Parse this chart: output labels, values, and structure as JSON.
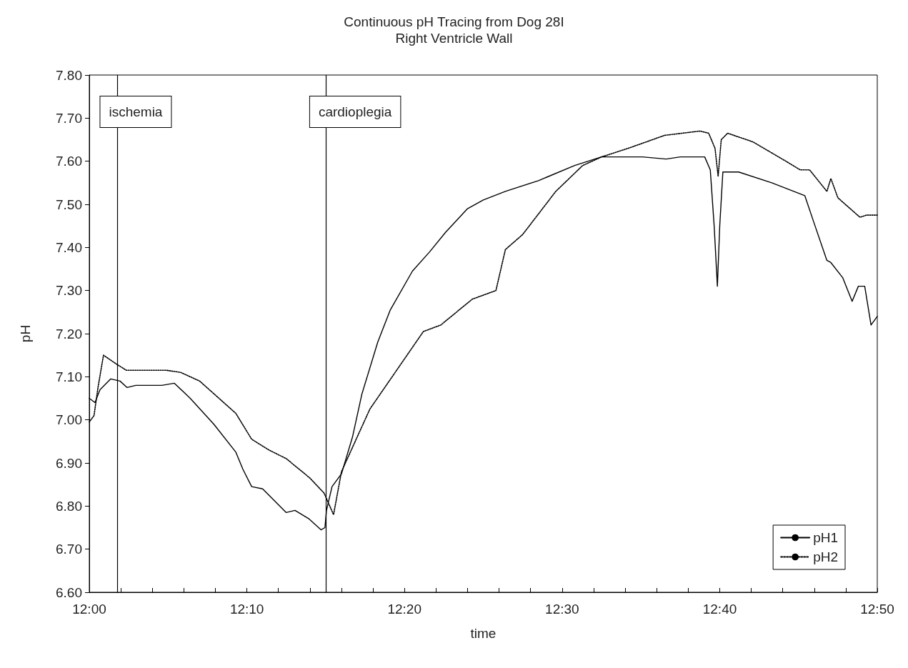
{
  "chart_data": {
    "type": "line",
    "title": "Continuous pH Tracing from Dog 28I",
    "subtitle": "Right Ventricle Wall",
    "xlabel": "time",
    "ylabel": "pH",
    "xlim": [
      12,
      12.8333
    ],
    "xticks": [
      {
        "value": 12,
        "label": "12:00"
      },
      {
        "value": 12.0333,
        "label": null
      },
      {
        "value": 12.0667,
        "label": null
      },
      {
        "value": 12.1,
        "label": null
      },
      {
        "value": 12.1333,
        "label": null
      },
      {
        "value": 12.1667,
        "label": "12:10"
      },
      {
        "value": 12.2,
        "label": null
      },
      {
        "value": 12.2333,
        "label": null
      },
      {
        "value": 12.2667,
        "label": null
      },
      {
        "value": 12.3,
        "label": null
      },
      {
        "value": 12.3333,
        "label": "12:20"
      },
      {
        "value": 12.3667,
        "label": null
      },
      {
        "value": 12.4,
        "label": null
      },
      {
        "value": 12.4333,
        "label": null
      },
      {
        "value": 12.4667,
        "label": null
      },
      {
        "value": 12.5,
        "label": "12:30"
      },
      {
        "value": 12.5333,
        "label": null
      },
      {
        "value": 12.5667,
        "label": null
      },
      {
        "value": 12.6,
        "label": null
      },
      {
        "value": 12.6333,
        "label": null
      },
      {
        "value": 12.6667,
        "label": "12:40"
      },
      {
        "value": 12.7,
        "label": null
      },
      {
        "value": 12.7333,
        "label": null
      },
      {
        "value": 12.7667,
        "label": null
      },
      {
        "value": 12.8,
        "label": null
      },
      {
        "value": 12.8333,
        "label": "12:50"
      }
    ],
    "ylim": [
      6.6,
      7.8
    ],
    "yticks": [
      {
        "value": 6.6,
        "label": "6.60"
      },
      {
        "value": 6.7,
        "label": "6.70"
      },
      {
        "value": 6.8,
        "label": "6.80"
      },
      {
        "value": 6.9,
        "label": "6.90"
      },
      {
        "value": 7.0,
        "label": "7.00"
      },
      {
        "value": 7.1,
        "label": "7.10"
      },
      {
        "value": 7.2,
        "label": "7.20"
      },
      {
        "value": 7.3,
        "label": "7.30"
      },
      {
        "value": 7.4,
        "label": "7.40"
      },
      {
        "value": 7.5,
        "label": "7.50"
      },
      {
        "value": 7.6,
        "label": "7.60"
      },
      {
        "value": 7.7,
        "label": "7.70"
      },
      {
        "value": 7.8,
        "label": "7.80"
      }
    ],
    "grid": false,
    "legend": "bottom right",
    "marker": "none",
    "ref_lines": [
      {
        "axis": "x",
        "value": 12.0283,
        "label": "ischemia",
        "color": "#000000"
      },
      {
        "axis": "x",
        "value": 12.25,
        "label": "cardioplegia",
        "color": "#000000"
      }
    ],
    "series": [
      {
        "name": "pH1",
        "color": "#000000",
        "line_style": "solid",
        "x": [
          12,
          12.006,
          12.0113,
          12.0227,
          12.0325,
          12.04,
          12.0492,
          12.0767,
          12.09,
          12.1067,
          12.1317,
          12.155,
          12.1625,
          12.1717,
          12.1833,
          12.2083,
          12.2175,
          12.2325,
          12.245,
          12.2492,
          12.2508,
          12.2567,
          12.2667,
          12.2783,
          12.2883,
          12.305,
          12.3183,
          12.3417,
          12.36,
          12.3767,
          12.4,
          12.4167,
          12.44,
          12.475,
          12.5133,
          12.5417,
          12.585,
          12.61,
          12.625,
          12.6508,
          12.6567,
          12.6608,
          12.6642,
          12.6667,
          12.67,
          12.6867,
          12.7217,
          12.7567,
          12.7667,
          12.78,
          12.7842,
          12.7967,
          12.8067,
          12.8133,
          12.82,
          12.8267,
          12.8333
        ],
        "values": [
          7.05,
          7.04,
          7.07,
          7.095,
          7.09,
          7.075,
          7.08,
          7.08,
          7.085,
          7.05,
          6.99,
          6.925,
          6.885,
          6.845,
          6.84,
          6.785,
          6.79,
          6.77,
          6.745,
          6.75,
          6.79,
          6.845,
          6.875,
          6.96,
          7.06,
          7.18,
          7.255,
          7.345,
          7.39,
          7.435,
          7.49,
          7.51,
          7.53,
          7.555,
          7.59,
          7.61,
          7.61,
          7.605,
          7.61,
          7.61,
          7.58,
          7.45,
          7.31,
          7.45,
          7.575,
          7.575,
          7.55,
          7.52,
          7.455,
          7.37,
          7.365,
          7.33,
          7.275,
          7.31,
          7.31,
          7.22,
          7.24
        ]
      },
      {
        "name": "pH2",
        "color": "#000000",
        "line_style": "dotted",
        "x": [
          12,
          12.005,
          12.0092,
          12.015,
          12.0283,
          12.0392,
          12.0567,
          12.0817,
          12.0967,
          12.1167,
          12.155,
          12.1717,
          12.19,
          12.2083,
          12.2333,
          12.2483,
          12.2583,
          12.2667,
          12.2967,
          12.325,
          12.3533,
          12.3717,
          12.405,
          12.43,
          12.44,
          12.4583,
          12.4933,
          12.5217,
          12.5417,
          12.57,
          12.6083,
          12.6458,
          12.655,
          12.6617,
          12.665,
          12.6683,
          12.675,
          12.7017,
          12.7367,
          12.7517,
          12.7617,
          12.78,
          12.7842,
          12.7917,
          12.815,
          12.8217,
          12.8333
        ],
        "values": [
          6.995,
          7.01,
          7.075,
          7.15,
          7.13,
          7.115,
          7.115,
          7.115,
          7.11,
          7.09,
          7.015,
          6.955,
          6.93,
          6.91,
          6.865,
          6.83,
          6.78,
          6.88,
          7.025,
          7.115,
          7.205,
          7.22,
          7.28,
          7.3,
          7.395,
          7.43,
          7.53,
          7.59,
          7.61,
          7.63,
          7.66,
          7.67,
          7.665,
          7.63,
          7.565,
          7.65,
          7.665,
          7.645,
          7.6,
          7.58,
          7.58,
          7.53,
          7.56,
          7.515,
          7.47,
          7.475,
          7.475
        ]
      }
    ]
  }
}
